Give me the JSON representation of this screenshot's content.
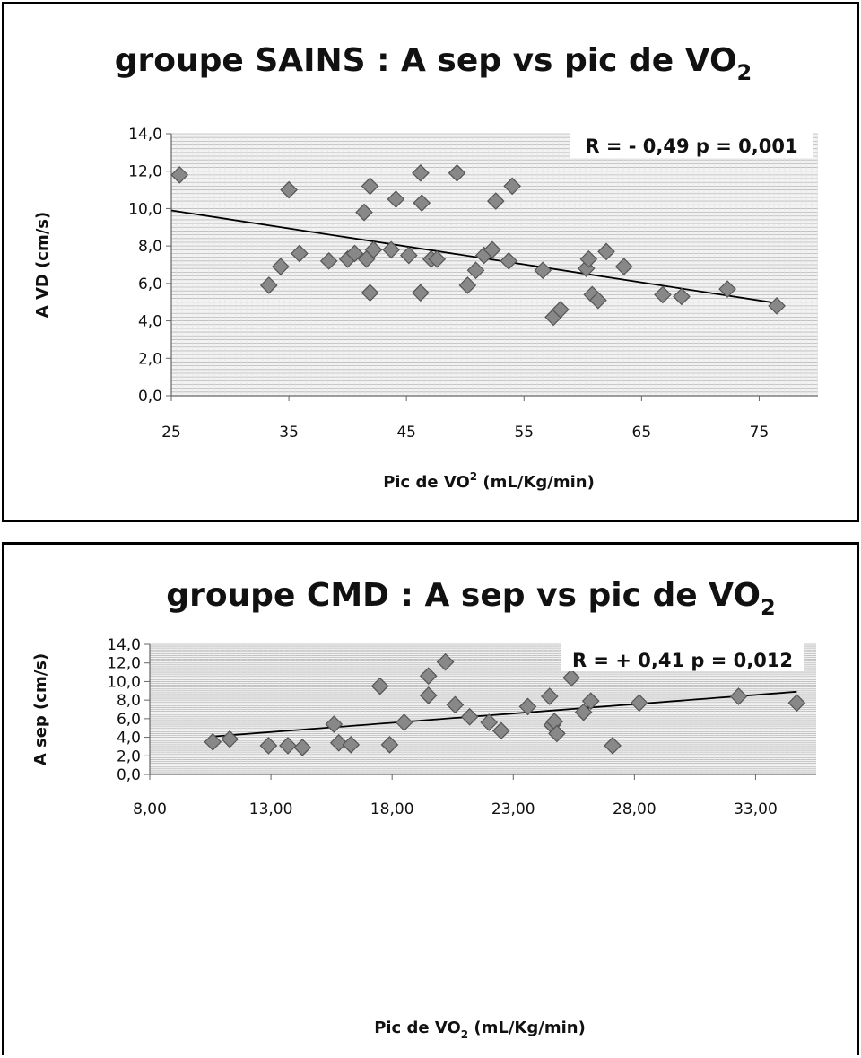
{
  "chart_data": [
    {
      "type": "scatter",
      "title": "groupe SAINS : A sep vs pic de VO",
      "title_subscript": "2",
      "xlabel_main": "Pic de VO",
      "xlabel_sup": "2",
      "xlabel_rest": " (mL/Kg/min)",
      "ylabel": "A VD (cm/s)",
      "annotation": "R = - 0,49  p = 0,001",
      "xlim": [
        25,
        80
      ],
      "ylim": [
        0,
        14
      ],
      "x_ticks": [
        "25",
        "35",
        "45",
        "55",
        "65",
        "75"
      ],
      "x_tick_values": [
        25,
        35,
        45,
        55,
        65,
        75
      ],
      "y_ticks": [
        "0,0",
        "2,0",
        "4,0",
        "6,0",
        "8,0",
        "10,0",
        "12,0",
        "14,0"
      ],
      "y_tick_values": [
        0,
        2,
        4,
        6,
        8,
        10,
        12,
        14
      ],
      "grid": "horizontal",
      "marker_color": "#888888",
      "trendline": {
        "x": [
          25,
          77
        ],
        "y": [
          9.9,
          4.9
        ]
      },
      "points": [
        [
          25.7,
          11.8
        ],
        [
          33.3,
          5.9
        ],
        [
          34.3,
          6.9
        ],
        [
          35.0,
          11.0
        ],
        [
          35.9,
          7.6
        ],
        [
          38.4,
          7.2
        ],
        [
          40.0,
          7.3
        ],
        [
          40.6,
          7.6
        ],
        [
          41.4,
          9.8
        ],
        [
          41.6,
          7.3
        ],
        [
          41.9,
          11.2
        ],
        [
          41.9,
          5.5
        ],
        [
          42.2,
          7.8
        ],
        [
          43.7,
          7.8
        ],
        [
          44.1,
          10.5
        ],
        [
          45.2,
          7.5
        ],
        [
          46.2,
          11.9
        ],
        [
          46.3,
          10.3
        ],
        [
          46.2,
          5.5
        ],
        [
          47.1,
          7.3
        ],
        [
          47.6,
          7.3
        ],
        [
          49.3,
          11.9
        ],
        [
          50.2,
          5.9
        ],
        [
          50.9,
          6.7
        ],
        [
          51.6,
          7.5
        ],
        [
          52.3,
          7.8
        ],
        [
          52.6,
          10.4
        ],
        [
          53.7,
          7.2
        ],
        [
          54.0,
          11.2
        ],
        [
          56.6,
          6.7
        ],
        [
          57.5,
          4.2
        ],
        [
          58.1,
          4.6
        ],
        [
          60.3,
          6.8
        ],
        [
          60.5,
          7.3
        ],
        [
          60.8,
          5.4
        ],
        [
          61.3,
          5.1
        ],
        [
          62.0,
          7.7
        ],
        [
          63.5,
          6.9
        ],
        [
          66.8,
          5.4
        ],
        [
          68.4,
          5.3
        ],
        [
          72.3,
          5.7
        ],
        [
          76.5,
          4.8
        ]
      ]
    },
    {
      "type": "scatter",
      "title": "groupe CMD : A sep vs pic de VO",
      "title_subscript": "2",
      "xlabel_main": "Pic de VO",
      "xlabel_sub": "2",
      "xlabel_rest": " (mL/Kg/min)",
      "ylabel": "A sep (cm/s)",
      "annotation": "R = + 0,41  p = 0,012",
      "xlim": [
        8,
        35.5
      ],
      "ylim": [
        0,
        14
      ],
      "x_ticks": [
        "8,00",
        "13,00",
        "18,00",
        "23,00",
        "28,00",
        "33,00"
      ],
      "x_tick_values": [
        8,
        13,
        18,
        23,
        28,
        33
      ],
      "y_ticks": [
        "0,0",
        "2,0",
        "4,0",
        "6,0",
        "8,0",
        "10,0",
        "12,0",
        "14,0"
      ],
      "y_tick_values": [
        0,
        2,
        4,
        6,
        8,
        10,
        12,
        14
      ],
      "grid": "horizontal",
      "marker_color": "#888888",
      "trendline": {
        "x": [
          10.7,
          34.7
        ],
        "y": [
          4.1,
          8.9
        ]
      },
      "points": [
        [
          10.6,
          3.5
        ],
        [
          11.3,
          3.8
        ],
        [
          12.9,
          3.1
        ],
        [
          13.7,
          3.1
        ],
        [
          14.3,
          2.9
        ],
        [
          15.6,
          5.4
        ],
        [
          15.8,
          3.4
        ],
        [
          16.3,
          3.2
        ],
        [
          17.5,
          9.5
        ],
        [
          17.9,
          3.2
        ],
        [
          18.5,
          5.6
        ],
        [
          19.5,
          10.6
        ],
        [
          19.5,
          8.5
        ],
        [
          20.2,
          12.1
        ],
        [
          20.6,
          7.5
        ],
        [
          21.2,
          6.2
        ],
        [
          22.0,
          5.6
        ],
        [
          22.5,
          4.7
        ],
        [
          23.6,
          7.3
        ],
        [
          24.5,
          8.4
        ],
        [
          24.6,
          5.3
        ],
        [
          24.7,
          5.7
        ],
        [
          24.8,
          4.4
        ],
        [
          25.4,
          10.4
        ],
        [
          25.9,
          6.7
        ],
        [
          26.2,
          7.9
        ],
        [
          27.1,
          3.1
        ],
        [
          28.2,
          7.7
        ],
        [
          32.3,
          8.4
        ],
        [
          34.7,
          7.7
        ]
      ]
    }
  ]
}
